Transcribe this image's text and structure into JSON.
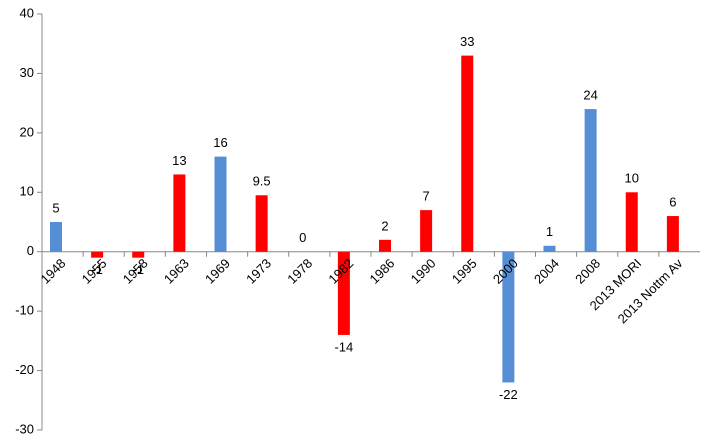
{
  "chart_data": {
    "type": "bar",
    "categories": [
      "1948",
      "1955",
      "1958",
      "1963",
      "1969",
      "1973",
      "1978",
      "1982",
      "1986",
      "1990",
      "1995",
      "2000",
      "2004",
      "2008",
      "2013 MORI",
      "2013 Nottm Av"
    ],
    "values": [
      5,
      -1,
      -1,
      13,
      16,
      9.5,
      0,
      -14,
      2,
      7,
      33,
      -22,
      1,
      24,
      10,
      6
    ],
    "colors": [
      "#558ed5",
      "#ff0000",
      "#ff0000",
      "#ff0000",
      "#558ed5",
      "#ff0000",
      "#ff0000",
      "#ff0000",
      "#ff0000",
      "#ff0000",
      "#ff0000",
      "#558ed5",
      "#558ed5",
      "#558ed5",
      "#ff0000",
      "#ff0000"
    ],
    "ylim": [
      -30,
      40
    ],
    "yticks": [
      -30,
      -20,
      -10,
      0,
      10,
      20,
      30,
      40
    ]
  }
}
